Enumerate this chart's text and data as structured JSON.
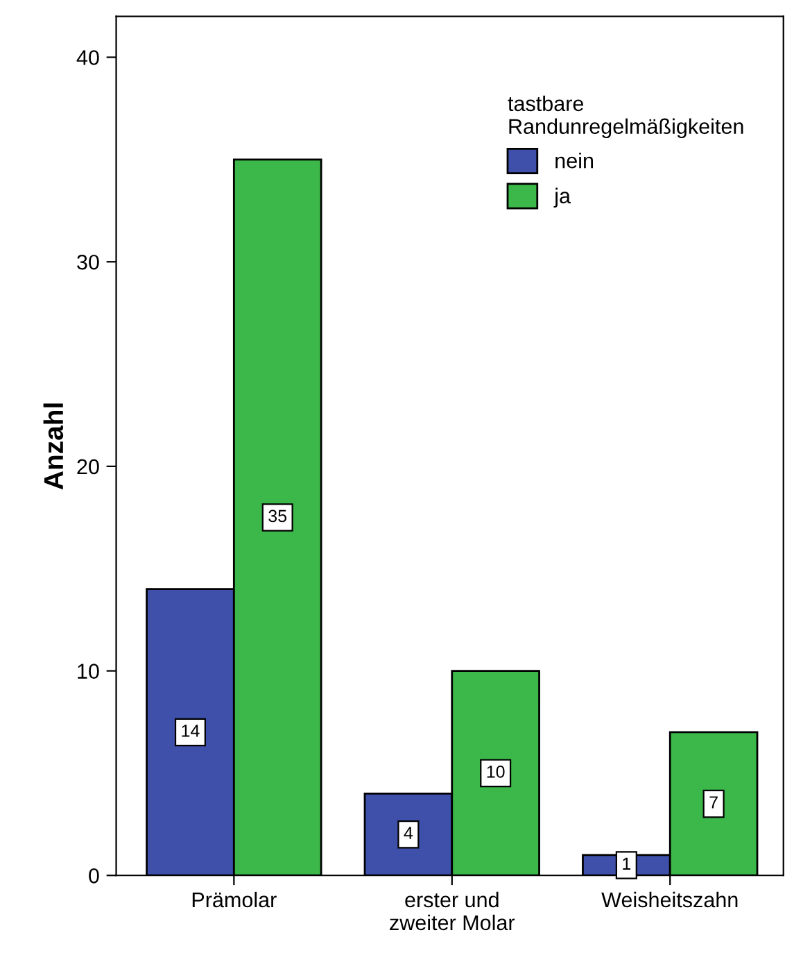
{
  "chart_data": {
    "type": "bar",
    "ylabel": "Anzahl",
    "legend_title": "tastbare\nRandunregelmäßigkeiten",
    "categories": [
      "Prämolar",
      "erster und\nzweiter Molar",
      "Weisheitszahn"
    ],
    "series": [
      {
        "name": "nein",
        "color": "#3e50a9",
        "values": [
          14,
          4,
          1
        ]
      },
      {
        "name": "ja",
        "color": "#3cb84a",
        "values": [
          35,
          10,
          7
        ]
      }
    ],
    "ylim": [
      0,
      42
    ],
    "yticks": [
      0,
      10,
      20,
      30,
      40
    ],
    "grid": false,
    "legend": "top right",
    "data_labels": true
  }
}
